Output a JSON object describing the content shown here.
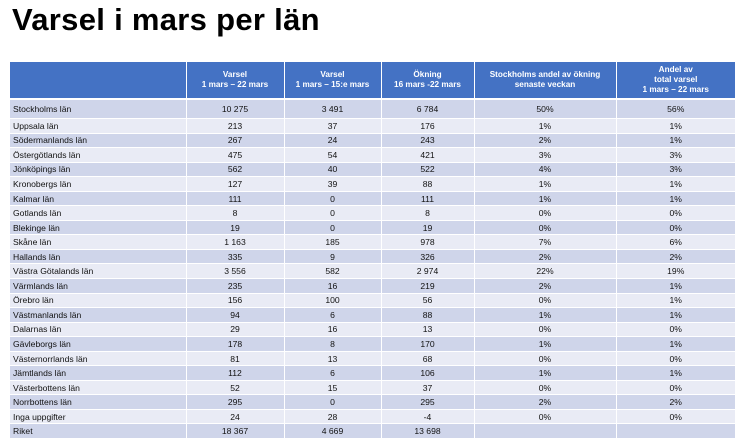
{
  "title": "Varsel i mars per län",
  "headers": [
    {
      "lines": [
        ""
      ]
    },
    {
      "lines": [
        "Varsel",
        "1 mars – 22 mars"
      ]
    },
    {
      "lines": [
        "Varsel",
        "1 mars – 15:e mars"
      ]
    },
    {
      "lines": [
        "Ökning",
        "16 mars -22 mars"
      ]
    },
    {
      "lines": [
        "Stockholms andel av ökning",
        "senaste veckan"
      ]
    },
    {
      "lines": [
        "Andel av",
        "total varsel",
        "1 mars – 22 mars"
      ]
    }
  ],
  "rows": [
    [
      "Stockholms län",
      "10 275",
      "3 491",
      "6 784",
      "50%",
      "56%"
    ],
    [
      "Uppsala län",
      "213",
      "37",
      "176",
      "1%",
      "1%"
    ],
    [
      "Södermanlands län",
      "267",
      "24",
      "243",
      "2%",
      "1%"
    ],
    [
      "Östergötlands län",
      "475",
      "54",
      "421",
      "3%",
      "3%"
    ],
    [
      "Jönköpings län",
      "562",
      "40",
      "522",
      "4%",
      "3%"
    ],
    [
      "Kronobergs län",
      "127",
      "39",
      "88",
      "1%",
      "1%"
    ],
    [
      "Kalmar län",
      "111",
      "0",
      "111",
      "1%",
      "1%"
    ],
    [
      "Gotlands län",
      "8",
      "0",
      "8",
      "0%",
      "0%"
    ],
    [
      "Blekinge län",
      "19",
      "0",
      "19",
      "0%",
      "0%"
    ],
    [
      "Skåne län",
      "1 163",
      "185",
      "978",
      "7%",
      "6%"
    ],
    [
      "Hallands län",
      "335",
      "9",
      "326",
      "2%",
      "2%"
    ],
    [
      "Västra Götalands län",
      "3 556",
      "582",
      "2 974",
      "22%",
      "19%"
    ],
    [
      "Värmlands län",
      "235",
      "16",
      "219",
      "2%",
      "1%"
    ],
    [
      "Örebro län",
      "156",
      "100",
      "56",
      "0%",
      "1%"
    ],
    [
      "Västmanlands län",
      "94",
      "6",
      "88",
      "1%",
      "1%"
    ],
    [
      "Dalarnas län",
      "29",
      "16",
      "13",
      "0%",
      "0%"
    ],
    [
      "Gävleborgs län",
      "178",
      "8",
      "170",
      "1%",
      "1%"
    ],
    [
      "Västernorrlands län",
      "81",
      "13",
      "68",
      "0%",
      "0%"
    ],
    [
      "Jämtlands län",
      "112",
      "6",
      "106",
      "1%",
      "1%"
    ],
    [
      "Västerbottens län",
      "52",
      "15",
      "37",
      "0%",
      "0%"
    ],
    [
      "Norrbottens län",
      "295",
      "0",
      "295",
      "2%",
      "2%"
    ],
    [
      "Inga uppgifter",
      "24",
      "28",
      "-4",
      "0%",
      "0%"
    ],
    [
      "Riket",
      "18 367",
      "4 669",
      "13 698",
      "",
      ""
    ]
  ]
}
